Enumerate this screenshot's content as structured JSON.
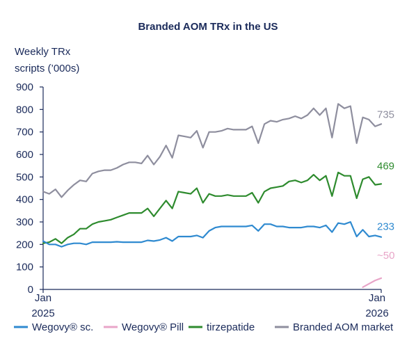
{
  "chart_data": {
    "type": "line",
    "title": "Branded AOM TRx in the US",
    "ylabel_lines": [
      "Weekly TRx",
      "scripts (’000s)"
    ],
    "ylim": [
      0,
      900
    ],
    "yticks": [
      "0",
      "100",
      "200",
      "300",
      "400",
      "500",
      "600",
      "700",
      "800",
      "900"
    ],
    "x_start_label": [
      "Jan",
      "2025"
    ],
    "x_end_label": [
      "Jan",
      "2026"
    ],
    "grid": false,
    "legend_position": "bottom",
    "weeks": 56,
    "series": [
      {
        "name": "Branded AOM market",
        "color": "#8e8e9e",
        "end_label": "735",
        "start_week": 0,
        "values": [
          435,
          425,
          445,
          410,
          440,
          465,
          485,
          480,
          515,
          525,
          530,
          530,
          540,
          555,
          565,
          565,
          560,
          595,
          555,
          590,
          640,
          585,
          685,
          680,
          675,
          705,
          630,
          700,
          700,
          705,
          715,
          710,
          710,
          710,
          725,
          650,
          735,
          750,
          745,
          755,
          760,
          770,
          760,
          775,
          805,
          775,
          805,
          675,
          825,
          805,
          815,
          650,
          765,
          755,
          725,
          735
        ]
      },
      {
        "name": "tirzepatide",
        "color": "#2e8b2e",
        "end_label": "469",
        "start_week": 0,
        "values": [
          205,
          210,
          225,
          205,
          230,
          245,
          270,
          270,
          290,
          300,
          305,
          310,
          320,
          330,
          340,
          340,
          340,
          360,
          325,
          360,
          395,
          360,
          435,
          430,
          425,
          450,
          385,
          425,
          415,
          415,
          420,
          415,
          415,
          415,
          430,
          385,
          435,
          450,
          455,
          460,
          480,
          485,
          475,
          485,
          510,
          485,
          505,
          415,
          520,
          505,
          505,
          405,
          490,
          500,
          465,
          469
        ]
      },
      {
        "name": "Wegovy® sc.",
        "color": "#2f8ad0",
        "end_label": "233",
        "start_week": 0,
        "values": [
          215,
          200,
          200,
          190,
          200,
          205,
          205,
          200,
          210,
          210,
          210,
          210,
          212,
          210,
          210,
          210,
          210,
          218,
          215,
          220,
          230,
          215,
          235,
          235,
          235,
          240,
          230,
          260,
          275,
          280,
          280,
          280,
          280,
          280,
          285,
          260,
          290,
          290,
          280,
          280,
          275,
          275,
          275,
          280,
          280,
          275,
          285,
          255,
          295,
          290,
          300,
          235,
          265,
          235,
          240,
          233
        ]
      },
      {
        "name": "Wegovy® Pill",
        "color": "#e8a5c8",
        "end_label": "~50",
        "start_week": 52,
        "values": [
          10,
          25,
          40,
          50
        ]
      }
    ],
    "legend": [
      {
        "name": "Wegovy® sc.",
        "color": "#2f8ad0"
      },
      {
        "name": "Wegovy® Pill",
        "color": "#e8a5c8"
      },
      {
        "name": "tirzepatide",
        "color": "#2e8b2e"
      },
      {
        "name": "Branded AOM market",
        "color": "#8e8e9e"
      }
    ]
  }
}
